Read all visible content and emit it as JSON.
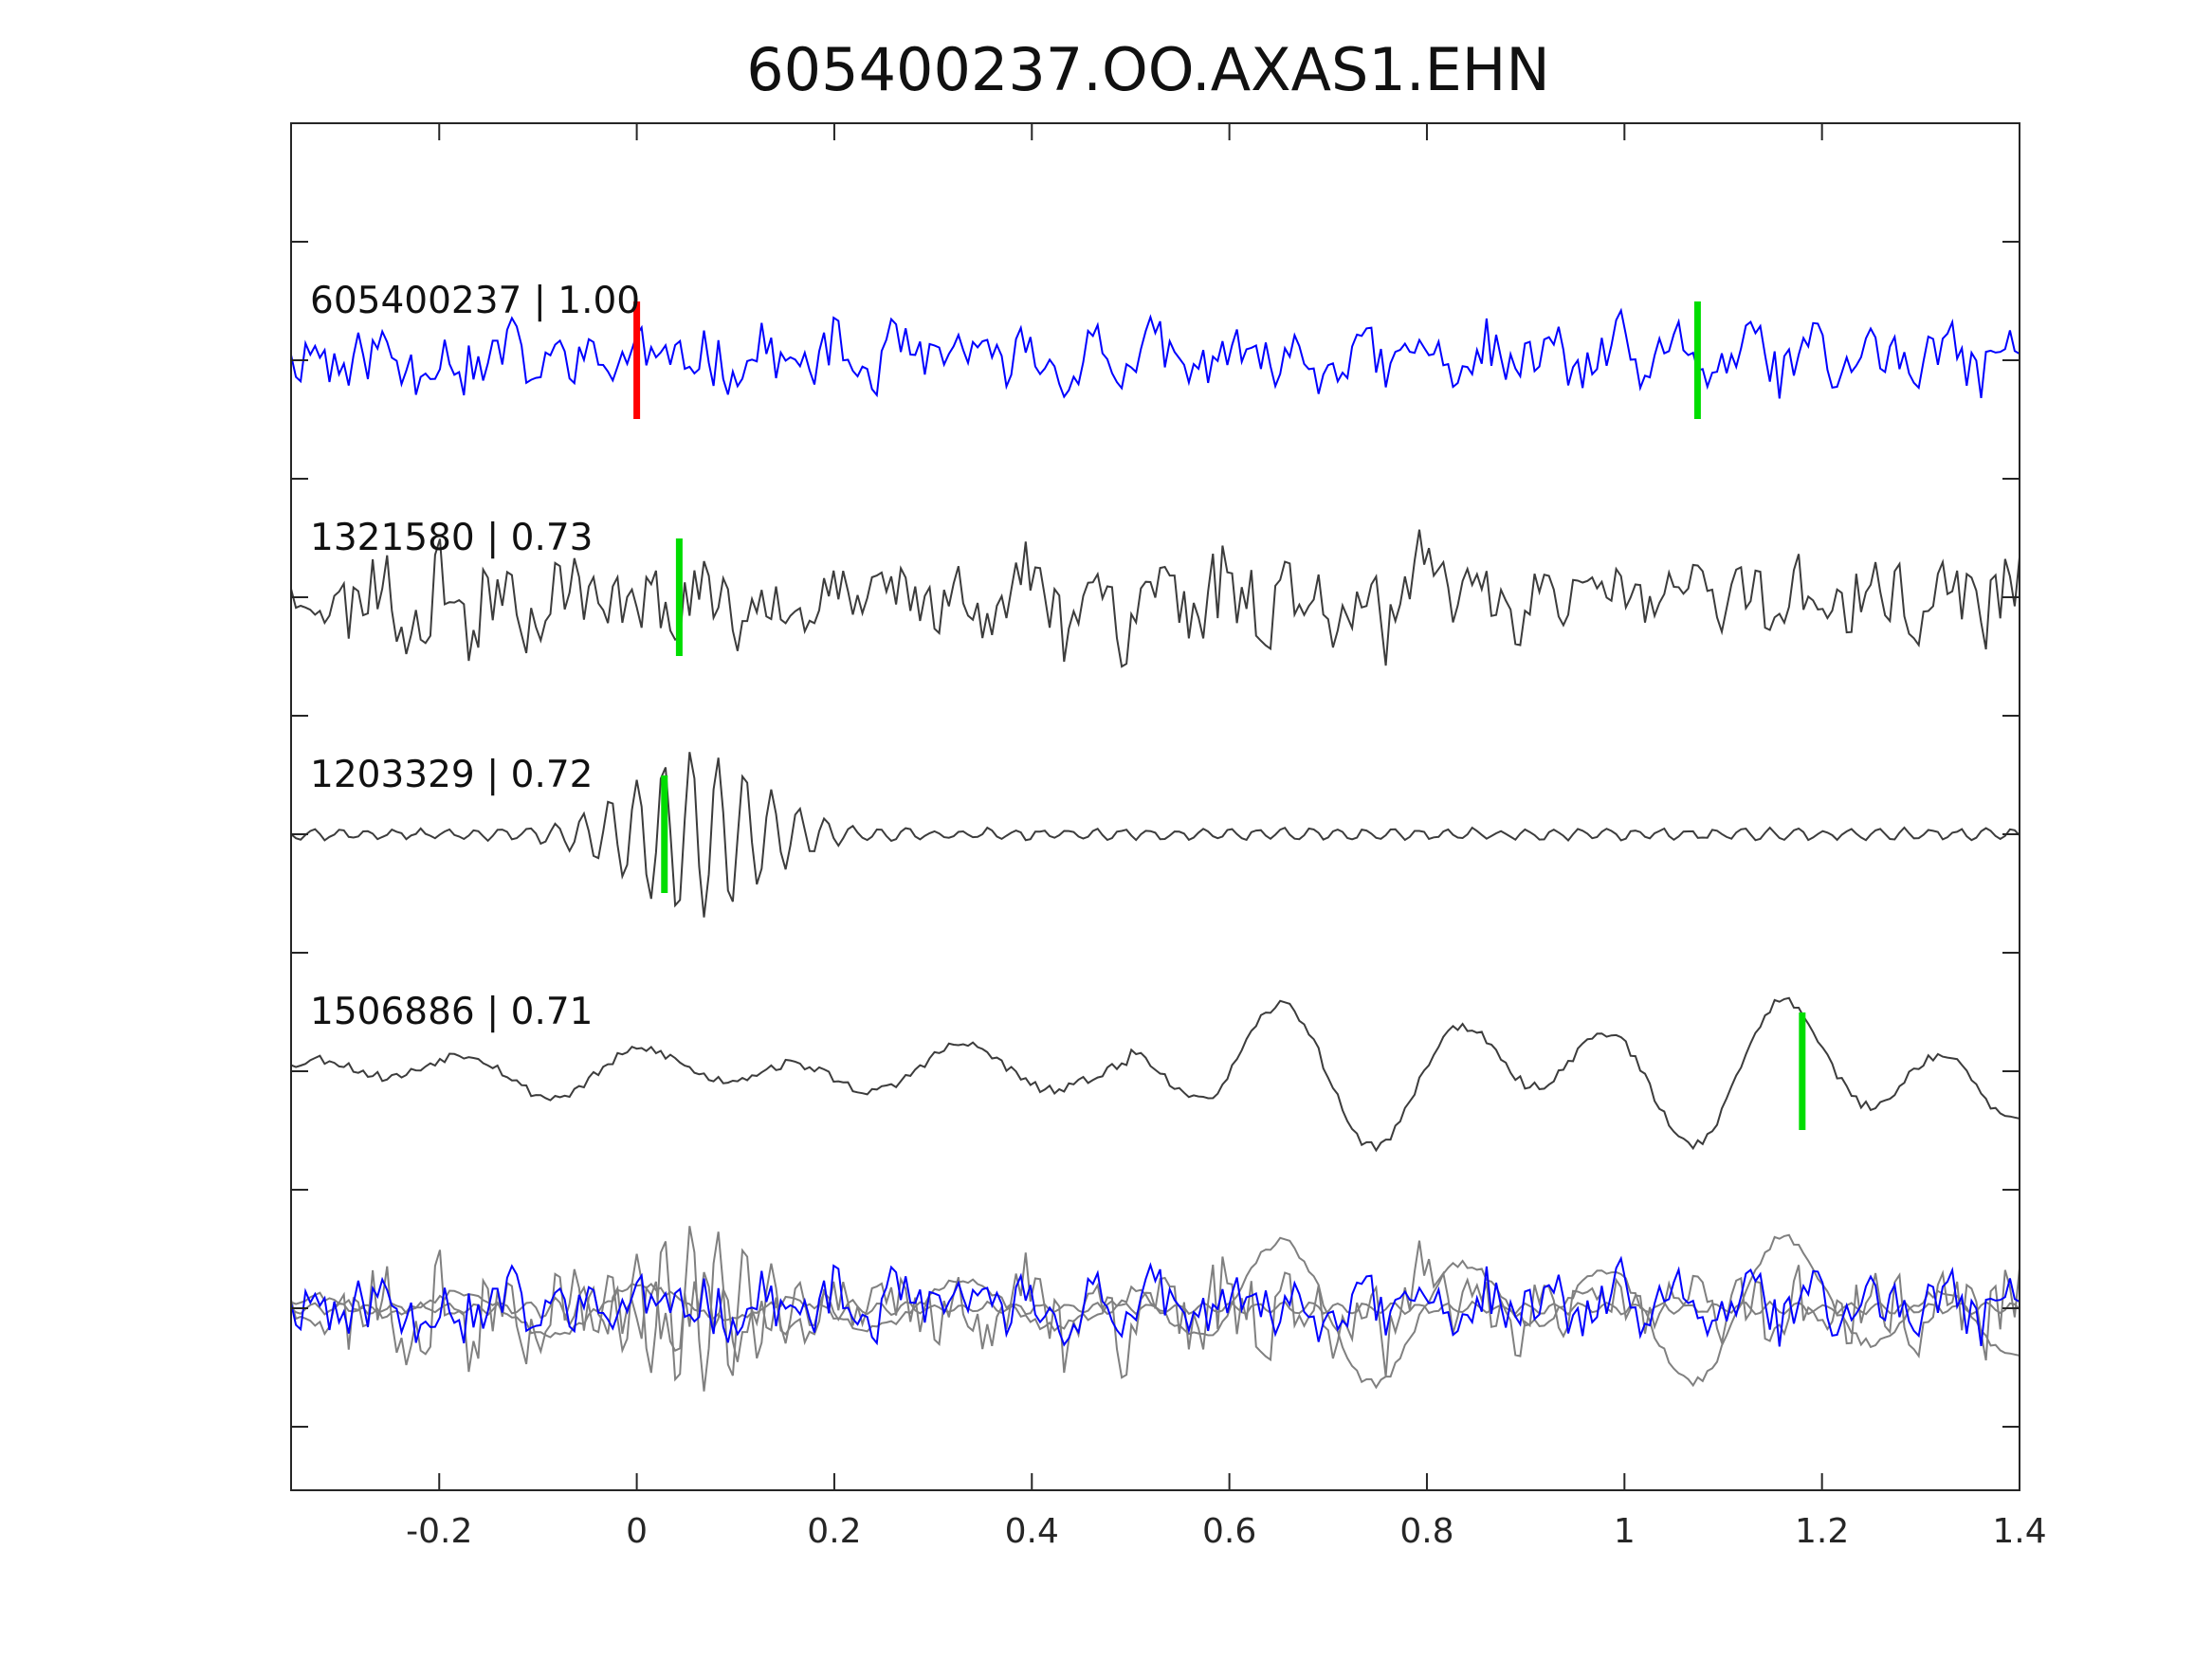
{
  "chart_data": {
    "type": "line",
    "title": "605400237.OO.AXAS1.EHN",
    "xlabel": "",
    "ylabel": "",
    "xlim": [
      -0.35,
      1.4
    ],
    "x_ticks": [
      {
        "value": -0.2,
        "label": "-0.2"
      },
      {
        "value": 0,
        "label": "0"
      },
      {
        "value": 0.2,
        "label": "0.2"
      },
      {
        "value": 0.4,
        "label": "0.4"
      },
      {
        "value": 0.6,
        "label": "0.6"
      },
      {
        "value": 0.8,
        "label": "0.8"
      },
      {
        "value": 1,
        "label": "1"
      },
      {
        "value": 1.2,
        "label": "1.2"
      },
      {
        "value": 1.4,
        "label": "1.4"
      }
    ],
    "y_tick_count": 11,
    "grid": false,
    "colors": {
      "template": "#0000ff",
      "match": "#3c3c3c",
      "overlay_match": "#808080",
      "primary_pick": "#ff0000",
      "secondary_pick": "#00dd00",
      "axes": "#262626"
    },
    "traces": [
      {
        "id": "605400237",
        "score": "1.00",
        "label": "605400237 | 1.00",
        "role": "template",
        "seed": 11,
        "character": "noise",
        "picks": [
          {
            "time": 0.0,
            "color": "#ff0000"
          },
          {
            "time": 1.074,
            "color": "#00dd00"
          }
        ]
      },
      {
        "id": "1321580",
        "score": "0.73",
        "label": "1321580 | 0.73",
        "role": "match",
        "seed": 23,
        "character": "noise",
        "picks": [
          {
            "time": 0.043,
            "color": "#00dd00"
          }
        ]
      },
      {
        "id": "1203329",
        "score": "0.72",
        "label": "1203329 | 0.72",
        "role": "match",
        "seed": 37,
        "character": "burst",
        "picks": [
          {
            "time": 0.028,
            "color": "#00dd00"
          }
        ]
      },
      {
        "id": "1506886",
        "score": "0.71",
        "label": "1506886 | 0.71",
        "role": "match",
        "seed": 53,
        "character": "lowfreq",
        "picks": [
          {
            "time": 1.18,
            "color": "#00dd00"
          }
        ]
      }
    ],
    "overlay": {
      "description_shown": false,
      "includes": [
        "605400237",
        "1321580",
        "1203329",
        "1506886"
      ]
    }
  }
}
